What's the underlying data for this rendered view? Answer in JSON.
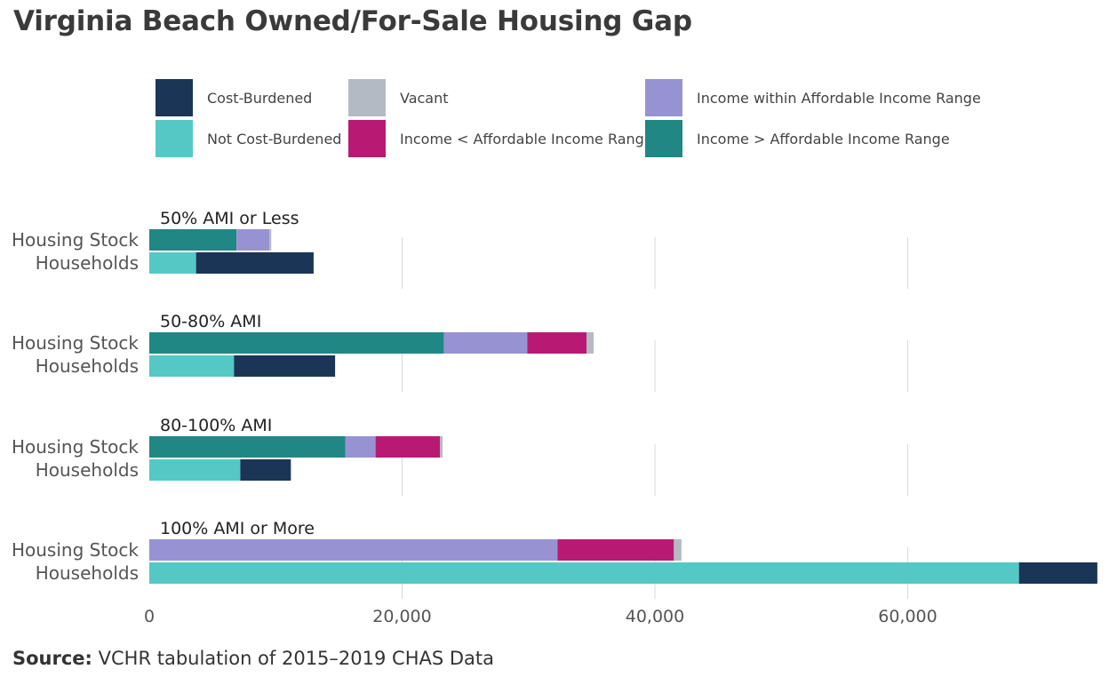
{
  "chart_data": {
    "type": "bar",
    "orientation": "horizontal",
    "stacked": true,
    "title": "Virginia Beach Owned/For-Sale Housing Gap",
    "xlabel": "",
    "ylabel": "",
    "xlim": [
      0,
      75000
    ],
    "x_ticks": [
      0,
      20000,
      40000,
      60000
    ],
    "x_tick_labels": [
      "0",
      "20,000",
      "40,000",
      "60,000"
    ],
    "grid": true,
    "legend_position": "top",
    "row_labels": {
      "stock": "Housing Stock",
      "households": "Households"
    },
    "legend": [
      {
        "key": "cost_burdened",
        "label": "Cost-Burdened",
        "color": "#1b3556"
      },
      {
        "key": "not_cost_burdened",
        "label": "Not Cost-Burdened",
        "color": "#55c8c6"
      },
      {
        "key": "vacant",
        "label": "Vacant",
        "color": "#b4bac4"
      },
      {
        "key": "income_below",
        "label": "Income < Affordable Income Range",
        "color": "#b81a73"
      },
      {
        "key": "income_within",
        "label": "Income within Affordable Income Range",
        "color": "#9793d2"
      },
      {
        "key": "income_above",
        "label": "Income > Affordable Income Range",
        "color": "#218784"
      }
    ],
    "panels": [
      {
        "name": "50% AMI or Less",
        "housing_stock": [
          {
            "key": "income_above",
            "value": 6900
          },
          {
            "key": "income_within",
            "value": 2600
          },
          {
            "key": "income_below",
            "value": 0
          },
          {
            "key": "vacant",
            "value": 150
          }
        ],
        "households": [
          {
            "key": "not_cost_burdened",
            "value": 3700
          },
          {
            "key": "cost_burdened",
            "value": 9300
          }
        ]
      },
      {
        "name": "50-80% AMI",
        "housing_stock": [
          {
            "key": "income_above",
            "value": 23300
          },
          {
            "key": "income_within",
            "value": 6600
          },
          {
            "key": "income_below",
            "value": 4700
          },
          {
            "key": "vacant",
            "value": 550
          }
        ],
        "households": [
          {
            "key": "not_cost_burdened",
            "value": 6700
          },
          {
            "key": "cost_burdened",
            "value": 8000
          }
        ]
      },
      {
        "name": "80-100% AMI",
        "housing_stock": [
          {
            "key": "income_above",
            "value": 15500
          },
          {
            "key": "income_within",
            "value": 2400
          },
          {
            "key": "income_below",
            "value": 5100
          },
          {
            "key": "vacant",
            "value": 200
          }
        ],
        "households": [
          {
            "key": "not_cost_burdened",
            "value": 7200
          },
          {
            "key": "cost_burdened",
            "value": 4000
          }
        ]
      },
      {
        "name": "100% AMI or More",
        "housing_stock": [
          {
            "key": "income_above",
            "value": 0
          },
          {
            "key": "income_within",
            "value": 32300
          },
          {
            "key": "income_below",
            "value": 9200
          },
          {
            "key": "vacant",
            "value": 600
          }
        ],
        "households": [
          {
            "key": "not_cost_burdened",
            "value": 68800
          },
          {
            "key": "cost_burdened",
            "value": 6200
          }
        ]
      }
    ]
  },
  "source": {
    "label": "Source:",
    "text": " VCHR tabulation of 2015–2019 CHAS Data"
  }
}
